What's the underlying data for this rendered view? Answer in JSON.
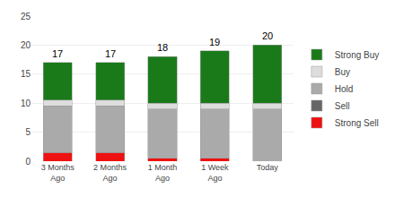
{
  "chart_data": {
    "type": "bar",
    "categories": [
      "3 Months\nAgo",
      "2 Months\nAgo",
      "1 Month\nAgo",
      "1 Week\nAgo",
      "Today"
    ],
    "series": [
      {
        "name": "Strong Sell",
        "color": "#ee1111",
        "values": [
          1.5,
          1.5,
          0.5,
          0.5,
          0.0
        ]
      },
      {
        "name": "Sell",
        "color": "#666666",
        "values": [
          0.0,
          0.0,
          0.0,
          0.0,
          0.0
        ]
      },
      {
        "name": "Hold",
        "color": "#aaaaaa",
        "values": [
          8.0,
          8.0,
          8.5,
          8.5,
          9.0
        ]
      },
      {
        "name": "Buy",
        "color": "#dddddd",
        "values": [
          1.0,
          1.0,
          1.0,
          1.0,
          1.0
        ]
      },
      {
        "name": "Strong Buy",
        "color": "#1a7a1a",
        "values": [
          6.5,
          6.5,
          8.0,
          9.0,
          10.0
        ]
      }
    ],
    "totals": [
      17,
      17,
      18,
      19,
      20
    ],
    "stacked": true,
    "ylim": [
      0,
      25
    ],
    "yticks": [
      0,
      5,
      10,
      15,
      20,
      25
    ],
    "grid": true,
    "legend": "right"
  }
}
